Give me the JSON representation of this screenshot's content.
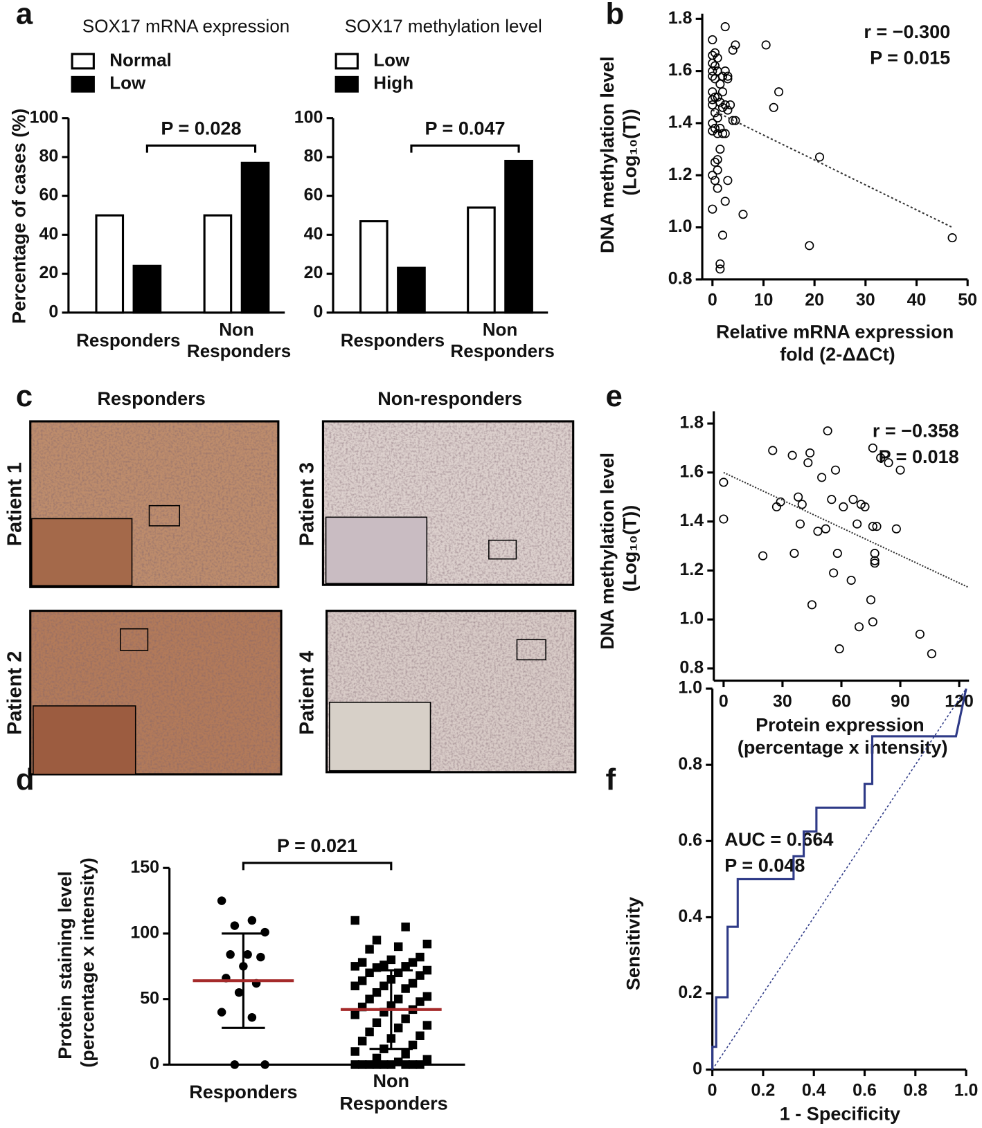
{
  "chart_data": [
    {
      "panel": "a",
      "type": "bar",
      "title": "SOX17 mRNA expression",
      "categories": [
        "Responders",
        "Non Responders"
      ],
      "series": [
        {
          "name": "Normal",
          "color": "#ffffff",
          "values": [
            50,
            50
          ]
        },
        {
          "name": "Low",
          "color": "#000000",
          "values": [
            24,
            77
          ]
        }
      ],
      "ylabel": "Percentage of cases (%)",
      "ylim": [
        0,
        100
      ],
      "yticks": [
        0,
        20,
        40,
        60,
        80,
        100
      ],
      "annotations": [
        "P = 0.028"
      ]
    },
    {
      "type": "bar",
      "title": "SOX17 methylation level",
      "categories": [
        "Responders",
        "Non Responders"
      ],
      "series": [
        {
          "name": "Low",
          "color": "#ffffff",
          "values": [
            47,
            54
          ]
        },
        {
          "name": "High",
          "color": "#000000",
          "values": [
            23,
            78
          ]
        }
      ],
      "ylim": [
        0,
        100
      ],
      "yticks": [
        0,
        20,
        40,
        60,
        80,
        100
      ],
      "annotations": [
        "P = 0.047"
      ]
    },
    {
      "panel": "b",
      "type": "scatter",
      "x": [
        0,
        0.5,
        0,
        1,
        0,
        0.5,
        0,
        1,
        0,
        0.5,
        1.5,
        0,
        0.5,
        0,
        1,
        2,
        1.5,
        2.5,
        3,
        3.5,
        2,
        0,
        0.5,
        1,
        4,
        4.5,
        0,
        0.5,
        0,
        1,
        1.5,
        2,
        2.5,
        1.5,
        1,
        0.5,
        1,
        0,
        0.5,
        3,
        1,
        2.5,
        0,
        6,
        2,
        1.5,
        1.5,
        2.5,
        4,
        4.5,
        2.5,
        3,
        10.5,
        13,
        12,
        21,
        19,
        47,
        3,
        2
      ],
      "values": [
        1.72,
        1.67,
        1.66,
        1.65,
        1.63,
        1.62,
        1.6,
        1.6,
        1.58,
        1.57,
        1.55,
        1.52,
        1.5,
        1.49,
        1.5,
        1.52,
        1.48,
        1.47,
        1.45,
        1.47,
        1.46,
        1.47,
        1.44,
        1.42,
        1.41,
        1.41,
        1.4,
        1.38,
        1.37,
        1.36,
        1.38,
        1.36,
        1.36,
        1.3,
        1.26,
        1.25,
        1.22,
        1.2,
        1.18,
        1.18,
        1.15,
        1.1,
        1.07,
        1.05,
        0.97,
        0.86,
        0.84,
        1.77,
        1.68,
        1.7,
        1.6,
        1.58,
        1.7,
        1.52,
        1.46,
        1.27,
        0.93,
        0.96,
        1.57,
        1.58
      ],
      "trendline": {
        "x": [
          0,
          47
        ],
        "values": [
          1.45,
          1.0
        ]
      },
      "xlabel": "Relative mRNA expression fold (2-ΔΔCt)",
      "ylabel": "DNA methylation level (Log₁₀(T))",
      "xlim": [
        -2,
        50
      ],
      "xticks": [
        0,
        10,
        20,
        30,
        40,
        50
      ],
      "ylim": [
        0.8,
        1.82
      ],
      "yticks": [
        0.8,
        {
          "value": 1,
          "label": "1.0"
        },
        1.2,
        1.4,
        1.6,
        1.8
      ],
      "annotations": [
        "r = −0.300",
        "P = 0.015"
      ]
    },
    {
      "panel": "e",
      "type": "scatter",
      "x": [
        0,
        0,
        20,
        25,
        27,
        29,
        35,
        36,
        38,
        39,
        40,
        43,
        44,
        45,
        48,
        50,
        52,
        53,
        55,
        56,
        57,
        58,
        59,
        61,
        65,
        66,
        68,
        69,
        70,
        72,
        75,
        76,
        76,
        77,
        77,
        77,
        78,
        76,
        80,
        88,
        90,
        100,
        106,
        84
      ],
      "values": [
        1.56,
        1.41,
        1.26,
        1.69,
        1.46,
        1.48,
        1.67,
        1.27,
        1.5,
        1.39,
        1.47,
        1.64,
        1.68,
        1.06,
        1.36,
        1.58,
        1.37,
        1.77,
        1.49,
        1.19,
        1.61,
        1.27,
        0.88,
        1.46,
        1.16,
        1.49,
        1.39,
        0.97,
        1.47,
        1.46,
        1.08,
        0.99,
        1.38,
        1.27,
        1.23,
        1.24,
        1.38,
        1.7,
        1.66,
        1.37,
        1.61,
        0.94,
        0.86,
        1.64
      ],
      "trendline": {
        "x": [
          0,
          125
        ],
        "values": [
          1.6,
          1.13
        ]
      },
      "xlabel": "Protein expression (percentage x intensity)",
      "ylabel": "DNA methylation level (Log₁₀(T))",
      "xlim": [
        -5,
        125
      ],
      "xticks": [
        0,
        30,
        60,
        90,
        120
      ],
      "ylim": [
        0.75,
        1.85
      ],
      "yticks": [
        0.8,
        {
          "value": 1,
          "label": "1.0"
        },
        1.2,
        1.4,
        1.6,
        1.8
      ],
      "annotations": [
        "r = −0.358",
        "P = 0.018"
      ]
    },
    {
      "panel": "d",
      "type": "strip",
      "categories": [
        "Responders",
        "Non Responders"
      ],
      "points": [
        [
          125,
          110,
          106,
          101,
          84,
          84,
          82,
          75,
          66,
          62,
          55,
          40,
          36,
          0,
          0
        ],
        [
          110,
          105,
          95,
          92,
          90,
          88,
          82,
          80,
          78,
          78,
          76,
          75,
          75,
          74,
          72,
          70,
          70,
          68,
          65,
          64,
          62,
          60,
          60,
          58,
          55,
          52,
          50,
          50,
          48,
          45,
          44,
          42,
          40,
          38,
          35,
          32,
          30,
          28,
          25,
          22,
          20,
          18,
          15,
          12,
          10,
          8,
          5,
          4,
          2,
          0,
          0,
          0,
          0,
          0,
          0,
          0,
          0,
          0
        ]
      ],
      "mean": [
        64,
        42
      ],
      "sd": [
        36,
        30
      ],
      "color": "#000000",
      "mean_color": "#a52a2a",
      "ylabel": "Protein staining level (percentage x intensity)",
      "ylim": [
        0,
        150
      ],
      "yticks": [
        0,
        50,
        100,
        150
      ],
      "annotations": [
        "P = 0.021"
      ]
    },
    {
      "panel": "f",
      "type": "line",
      "color": "#2e3a87",
      "x": [
        0,
        0,
        0.015,
        0.015,
        0.06,
        0.06,
        0.1,
        0.1,
        0.32,
        0.32,
        0.36,
        0.36,
        0.41,
        0.41,
        0.6,
        0.6,
        0.63,
        0.63,
        0.96,
        1.0
      ],
      "values": [
        0,
        0.06,
        0.06,
        0.19,
        0.19,
        0.375,
        0.375,
        0.5,
        0.5,
        0.56,
        0.56,
        0.625,
        0.625,
        0.6875,
        0.6875,
        0.75,
        0.75,
        0.875,
        0.875,
        1.0
      ],
      "xlabel": "1 - Specificity",
      "ylabel": "Sensitivity",
      "xlim": [
        0,
        1
      ],
      "xticks": [
        0,
        0.2,
        0.4,
        0.6,
        0.8,
        {
          "value": 1,
          "label": "1.0"
        }
      ],
      "ylim": [
        0,
        1
      ],
      "yticks": [
        0,
        0.2,
        0.4,
        0.6,
        0.8,
        {
          "value": 1,
          "label": "1.0"
        }
      ],
      "annotations": [
        "AUC = 0.664",
        "P = 0.048"
      ]
    }
  ],
  "image_panel": {
    "panel": "c",
    "columns": [
      "Responders",
      "Non-responders"
    ],
    "patients": [
      "Patient 1",
      "Patient 2",
      "Patient 3",
      "Patient 4"
    ]
  }
}
